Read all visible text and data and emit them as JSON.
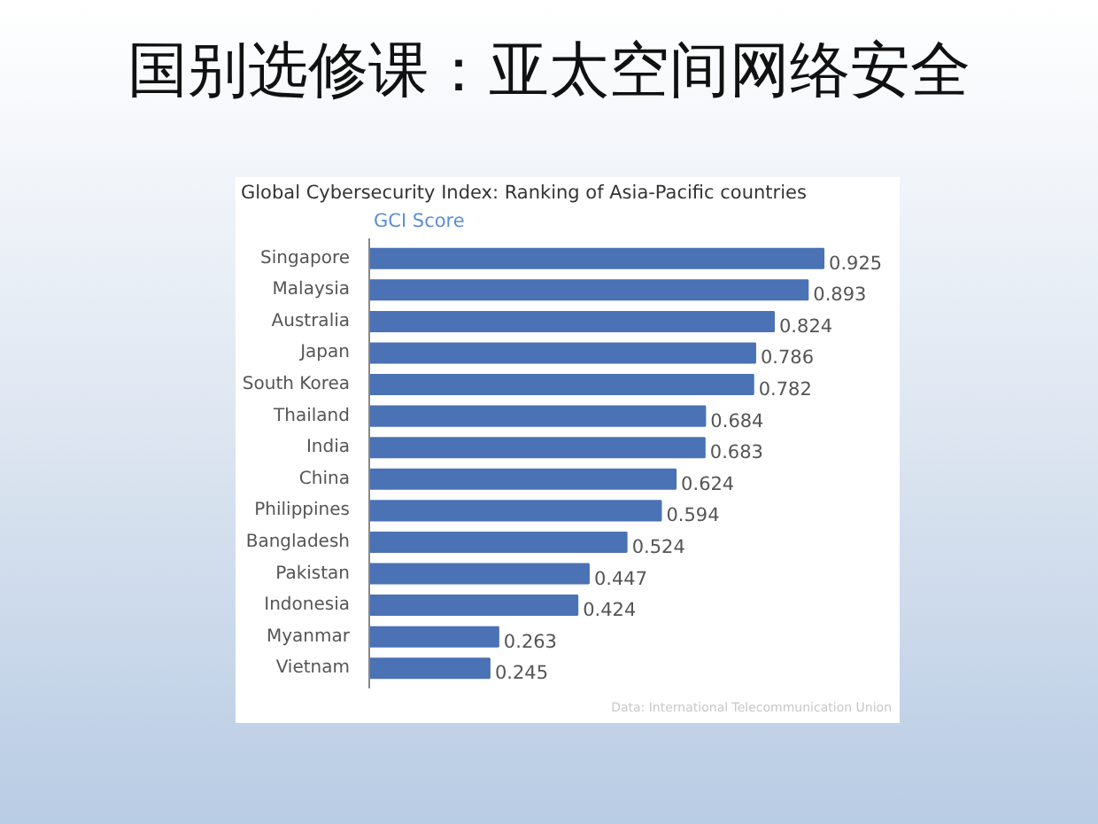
{
  "chart_data": {
    "type": "bar",
    "orientation": "horizontal",
    "title": "国别选修课：亚太空间网络安全",
    "subtitle": "Global Cybersecurity Index: Ranking of Asia-Pacific countries",
    "categories": [
      "Singapore",
      "Malaysia",
      "Australia",
      "Japan",
      "South Korea",
      "Thailand",
      "India",
      "China",
      "Philippines",
      "Bangladesh",
      "Pakistan",
      "Indonesia",
      "Myanmar",
      "Vietnam"
    ],
    "series": [
      {
        "name": "GCI Score",
        "color": "#4a72b5",
        "values": [
          0.925,
          0.893,
          0.824,
          0.786,
          0.782,
          0.684,
          0.683,
          0.624,
          0.594,
          0.524,
          0.447,
          0.424,
          0.263,
          0.245
        ]
      }
    ],
    "data_labels": true,
    "grid": false,
    "legend": "top",
    "annotations": [
      "Data: International Telecommunication Union"
    ]
  }
}
